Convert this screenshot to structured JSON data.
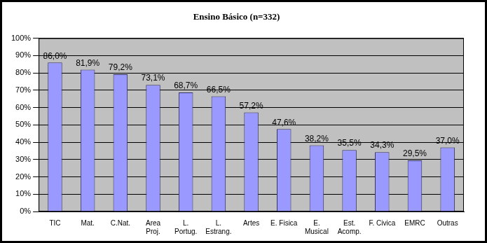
{
  "chart_data": {
    "type": "bar",
    "title": "Ensino Básico (n=332)",
    "categories": [
      "TIC",
      "Mat.",
      "C.Nat.",
      "Area\nProj.",
      "L.\nPortug.",
      "L.\nEstrang.",
      "Artes",
      "E. Fisica",
      "E.\nMusical",
      "Est.\nAcomp.",
      "F. Civica",
      "EMRC",
      "Outras"
    ],
    "values": [
      86.0,
      81.9,
      79.2,
      73.1,
      68.7,
      66.5,
      57.2,
      47.6,
      38.2,
      35.5,
      34.3,
      29.5,
      37.0
    ],
    "value_labels": [
      "86,0%",
      "81,9%",
      "79,2%",
      "73,1%",
      "68,7%",
      "66,5%",
      "57,2%",
      "47,6%",
      "38,2%",
      "35,5%",
      "34,3%",
      "29,5%",
      "37,0%"
    ],
    "color": "#9999ff",
    "ylim": [
      0,
      100
    ],
    "yticks": [
      {
        "value": 0,
        "label": "0%"
      },
      {
        "value": 10,
        "label": "10%"
      },
      {
        "value": 20,
        "label": "20%"
      },
      {
        "value": 30,
        "label": "30%"
      },
      {
        "value": 40,
        "label": "40%"
      },
      {
        "value": 50,
        "label": "50%"
      },
      {
        "value": 60,
        "label": "60%"
      },
      {
        "value": 70,
        "label": "70%"
      },
      {
        "value": 80,
        "label": "80%"
      },
      {
        "value": 90,
        "label": "90%"
      },
      {
        "value": 100,
        "label": "100%"
      }
    ],
    "grid": true,
    "data_labels": true
  }
}
